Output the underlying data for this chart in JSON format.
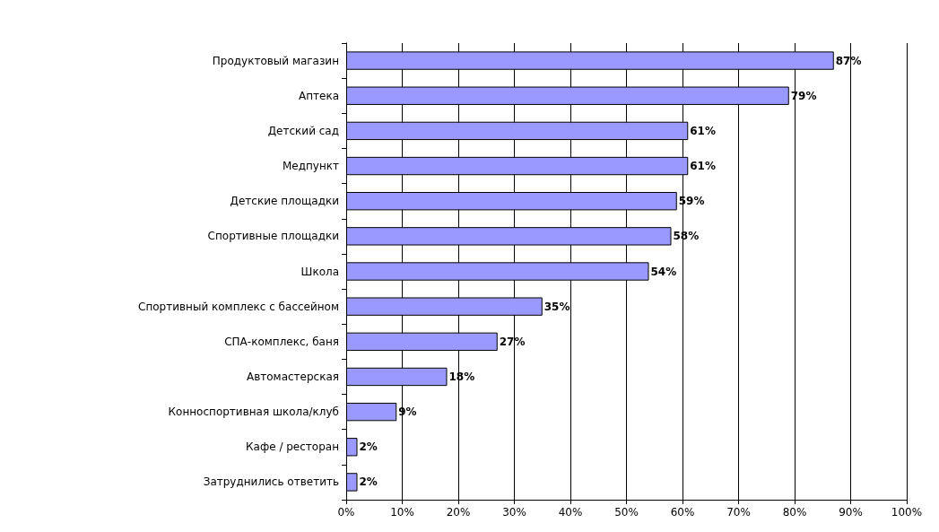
{
  "chart_data": {
    "type": "bar",
    "orientation": "horizontal",
    "categories": [
      "Продуктовый магазин",
      "Аптека",
      "Детский сад",
      "Медпункт",
      "Детские площадки",
      "Спортивные площадки",
      "Школа",
      "Спортивный комплекс с бассейном",
      "СПА-комплекс, баня",
      "Автомастерская",
      "Конноспортивная школа/клуб",
      "Кафе / ресторан",
      "Затруднились ответить"
    ],
    "values": [
      87,
      79,
      61,
      61,
      59,
      58,
      54,
      35,
      27,
      18,
      9,
      2,
      2
    ],
    "value_labels": [
      "87%",
      "79%",
      "61%",
      "61%",
      "59%",
      "58%",
      "54%",
      "35%",
      "27%",
      "18%",
      "9%",
      "2%",
      "2%"
    ],
    "color": "#9999ff",
    "xlim": [
      0,
      100
    ],
    "xticks": [
      {
        "value": 0,
        "label": "0%"
      },
      {
        "value": 10,
        "label": "10%"
      },
      {
        "value": 20,
        "label": "20%"
      },
      {
        "value": 30,
        "label": "30%"
      },
      {
        "value": 40,
        "label": "40%"
      },
      {
        "value": 50,
        "label": "50%"
      },
      {
        "value": 60,
        "label": "60%"
      },
      {
        "value": 70,
        "label": "70%"
      },
      {
        "value": 80,
        "label": "80%"
      },
      {
        "value": 90,
        "label": "90%"
      },
      {
        "value": 100,
        "label": "100%"
      }
    ],
    "grid": "x"
  }
}
